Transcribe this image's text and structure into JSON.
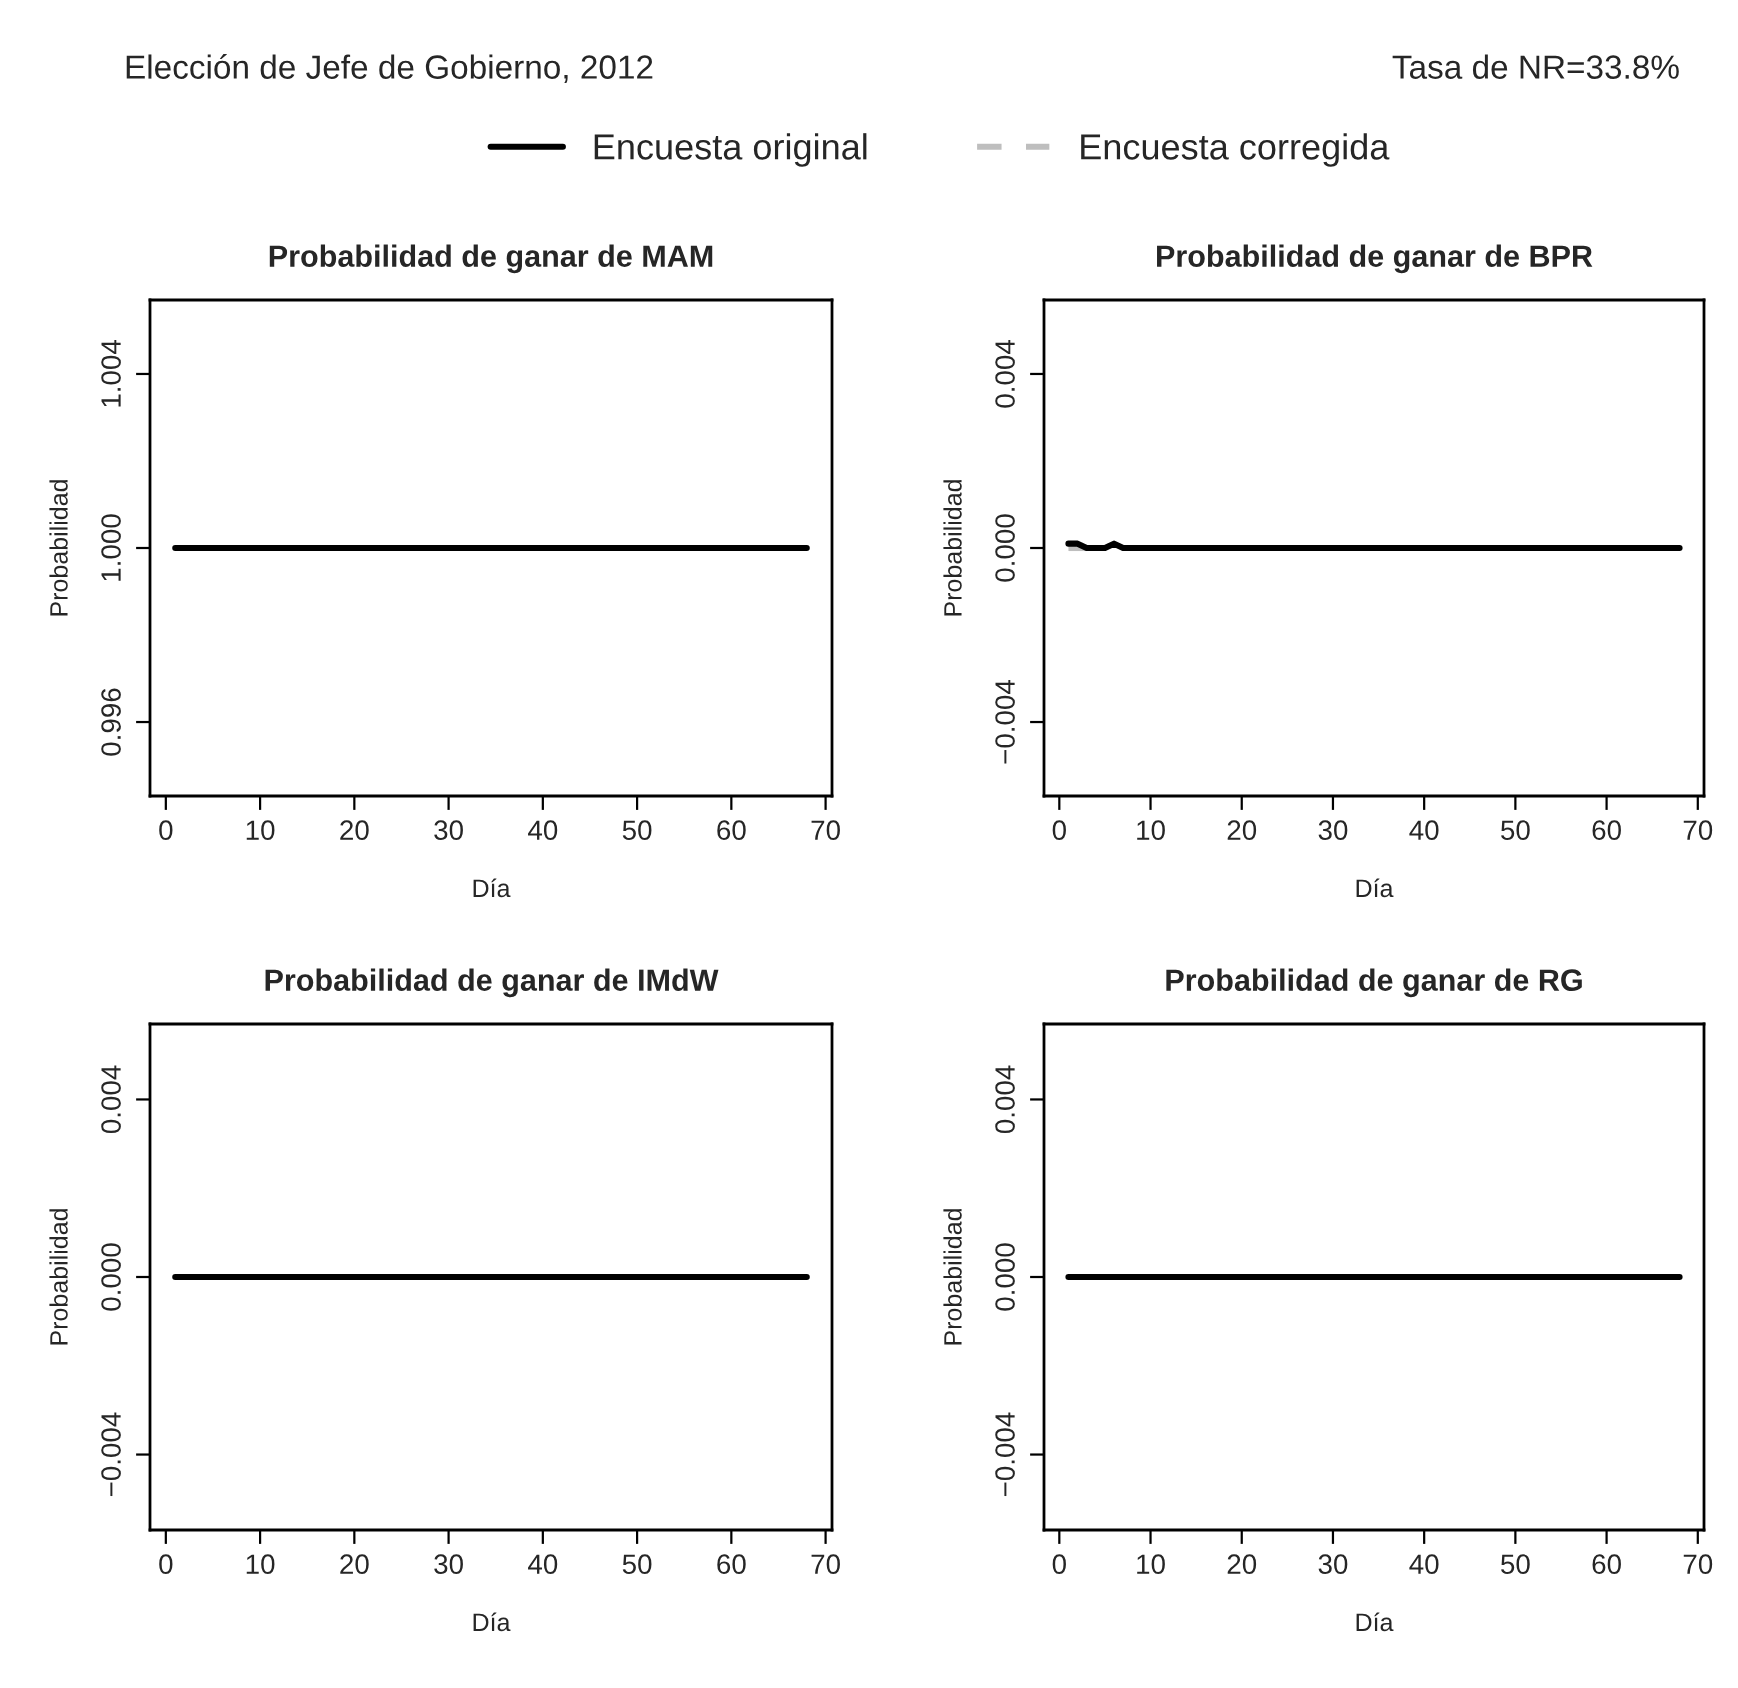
{
  "chart_data": [
    {
      "type": "line",
      "title": "Probabilidad de ganar de MAM",
      "xlabel": "Día",
      "ylabel": "Probabilidad",
      "legend": "top",
      "annotations": [
        "Elección de Jefe de Gobierno, 2012",
        "Tasa de NR=33.8%"
      ],
      "xlim": [
        -1.68,
        70.68
      ],
      "xticks": [
        0,
        10,
        20,
        30,
        40,
        50,
        60,
        70
      ],
      "ylim": [
        0.9943,
        1.0057
      ],
      "yticks": [
        {
          "value": 0.996,
          "label": "0.996"
        },
        {
          "value": 1.0,
          "label": "1.000"
        },
        {
          "value": 1.004,
          "label": "1.004"
        }
      ],
      "series": [
        {
          "name": "Encuesta original",
          "color": "#000000",
          "line_style": "solid",
          "x": [
            1,
            68
          ],
          "values": [
            1.0,
            1.0
          ]
        },
        {
          "name": "Encuesta corregida",
          "color": "#bebebe",
          "line_style": "dashed"
        }
      ]
    },
    {
      "type": "line",
      "title": "Probabilidad de ganar de BPR",
      "xlabel": "Día",
      "ylabel": "Probabilidad",
      "xlim": [
        -1.68,
        70.68
      ],
      "xticks": [
        0,
        10,
        20,
        30,
        40,
        50,
        60,
        70
      ],
      "ylim": [
        -0.0057,
        0.0057
      ],
      "yticks": [
        {
          "value": -0.004,
          "label": "−0.004"
        },
        {
          "value": 0.0,
          "label": "0.000"
        },
        {
          "value": 0.004,
          "label": "0.004"
        }
      ],
      "series": [
        {
          "color": "#000000",
          "line_style": "solid",
          "x": [
            1,
            2,
            3,
            4,
            5,
            6,
            7,
            8,
            68
          ],
          "values": [
            0.0001,
            0.0001,
            0.0,
            0.0,
            0.0,
            0.0001,
            0.0,
            0.0,
            0.0
          ]
        },
        {
          "color": "#bebebe",
          "line_style": "dashed",
          "x": [
            1,
            3
          ],
          "values": [
            0.0,
            0.0
          ]
        }
      ]
    },
    {
      "type": "line",
      "title": "Probabilidad de ganar de IMdW",
      "xlabel": "Día",
      "ylabel": "Probabilidad",
      "xlim": [
        -1.68,
        70.68
      ],
      "xticks": [
        0,
        10,
        20,
        30,
        40,
        50,
        60,
        70
      ],
      "ylim": [
        -0.0057,
        0.0057
      ],
      "yticks": [
        {
          "value": -0.004,
          "label": "−0.004"
        },
        {
          "value": 0.0,
          "label": "0.000"
        },
        {
          "value": 0.004,
          "label": "0.004"
        }
      ],
      "series": [
        {
          "color": "#000000",
          "line_style": "solid",
          "x": [
            1,
            68
          ],
          "values": [
            0.0,
            0.0
          ]
        }
      ]
    },
    {
      "type": "line",
      "title": "Probabilidad de ganar de RG",
      "xlabel": "Día",
      "ylabel": "Probabilidad",
      "xlim": [
        -1.68,
        70.68
      ],
      "xticks": [
        0,
        10,
        20,
        30,
        40,
        50,
        60,
        70
      ],
      "ylim": [
        -0.0057,
        0.0057
      ],
      "yticks": [
        {
          "value": -0.004,
          "label": "−0.004"
        },
        {
          "value": 0.0,
          "label": "0.000"
        },
        {
          "value": 0.004,
          "label": "0.004"
        }
      ],
      "series": [
        {
          "color": "#000000",
          "line_style": "solid",
          "x": [
            1,
            68
          ],
          "values": [
            0.0,
            0.0
          ]
        }
      ]
    }
  ]
}
